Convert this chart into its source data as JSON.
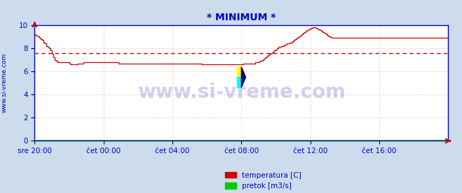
{
  "title": "* MINIMUM *",
  "title_color": "#0000cc",
  "bg_color": "#ccdcec",
  "plot_bg_color": "#ffffff",
  "grid_color": "#ffaaaa",
  "axis_color": "#0000cc",
  "line_color": "#cc0000",
  "avg_line_value": 7.55,
  "ylabel_text": "www.si-vreme.com",
  "ylabel_color": "#0000aa",
  "xlim": [
    0,
    288
  ],
  "ylim": [
    0,
    10
  ],
  "yticks": [
    0,
    2,
    4,
    6,
    8,
    10
  ],
  "xtick_labels": [
    "sre 20:00",
    "čet 00:00",
    "čet 04:00",
    "čet 08:00",
    "čet 12:00",
    "čet 16:00"
  ],
  "xtick_positions": [
    0,
    48,
    96,
    144,
    192,
    240
  ],
  "legend_labels": [
    "temperatura [C]",
    "pretok [m3/s]"
  ],
  "legend_colors": [
    "#cc0000",
    "#00cc00"
  ],
  "watermark_text": "www.si-vreme.com",
  "watermark_color": "#0000aa",
  "watermark_alpha": 0.18,
  "temperature_data": [
    9.2,
    9.1,
    9.0,
    8.9,
    8.8,
    8.7,
    8.5,
    8.4,
    8.2,
    8.1,
    8.0,
    7.8,
    7.5,
    7.2,
    7.0,
    6.9,
    6.8,
    6.8,
    6.8,
    6.8,
    6.8,
    6.8,
    6.8,
    6.8,
    6.7,
    6.6,
    6.6,
    6.6,
    6.6,
    6.6,
    6.7,
    6.7,
    6.7,
    6.7,
    6.8,
    6.8,
    6.8,
    6.8,
    6.8,
    6.8,
    6.8,
    6.8,
    6.8,
    6.8,
    6.8,
    6.8,
    6.8,
    6.8,
    6.8,
    6.8,
    6.8,
    6.8,
    6.8,
    6.8,
    6.8,
    6.8,
    6.8,
    6.8,
    6.7,
    6.7,
    6.7,
    6.7,
    6.7,
    6.7,
    6.7,
    6.7,
    6.7,
    6.7,
    6.7,
    6.7,
    6.7,
    6.7,
    6.7,
    6.7,
    6.7,
    6.7,
    6.7,
    6.7,
    6.7,
    6.7,
    6.7,
    6.7,
    6.7,
    6.7,
    6.7,
    6.7,
    6.7,
    6.7,
    6.7,
    6.7,
    6.7,
    6.7,
    6.7,
    6.7,
    6.7,
    6.7,
    6.7,
    6.7,
    6.7,
    6.7,
    6.7,
    6.7,
    6.7,
    6.7,
    6.7,
    6.7,
    6.7,
    6.7,
    6.7,
    6.7,
    6.7,
    6.7,
    6.7,
    6.7,
    6.7,
    6.7,
    6.6,
    6.6,
    6.6,
    6.6,
    6.6,
    6.6,
    6.6,
    6.6,
    6.6,
    6.6,
    6.6,
    6.6,
    6.6,
    6.6,
    6.6,
    6.6,
    6.6,
    6.6,
    6.6,
    6.6,
    6.6,
    6.6,
    6.6,
    6.6,
    6.6,
    6.6,
    6.6,
    6.6,
    6.6,
    6.7,
    6.7,
    6.7,
    6.7,
    6.7,
    6.7,
    6.7,
    6.7,
    6.8,
    6.8,
    6.8,
    6.9,
    6.9,
    7.0,
    7.1,
    7.2,
    7.3,
    7.4,
    7.5,
    7.6,
    7.7,
    7.8,
    7.9,
    8.0,
    8.1,
    8.1,
    8.2,
    8.2,
    8.3,
    8.3,
    8.4,
    8.4,
    8.5,
    8.5,
    8.6,
    8.7,
    8.8,
    8.9,
    9.0,
    9.1,
    9.2,
    9.3,
    9.4,
    9.5,
    9.6,
    9.65,
    9.7,
    9.75,
    9.8,
    9.8,
    9.75,
    9.7,
    9.65,
    9.6,
    9.5,
    9.4,
    9.3,
    9.2,
    9.1,
    9.0,
    8.95,
    8.9,
    8.9,
    8.9,
    8.9,
    8.9,
    8.9,
    8.9,
    8.9,
    8.9,
    8.9,
    8.9,
    8.9,
    8.9,
    8.9,
    8.9,
    8.9,
    8.9,
    8.9,
    8.9,
    8.9,
    8.9,
    8.9,
    8.9,
    8.9,
    8.9,
    8.9,
    8.9,
    8.9,
    8.9,
    8.9,
    8.9,
    8.9,
    8.9,
    8.9,
    8.9,
    8.9,
    8.9,
    8.9,
    8.9,
    8.9,
    8.9,
    8.9,
    8.9,
    8.9,
    8.9,
    8.9,
    8.9,
    8.9,
    8.9,
    8.9,
    8.9,
    8.9,
    8.9,
    8.9,
    8.9,
    8.9,
    8.9,
    8.9,
    8.9,
    8.9,
    8.9,
    8.9,
    8.9,
    8.9,
    8.9,
    8.9,
    8.9,
    8.9,
    8.9,
    8.9,
    8.9,
    8.9,
    8.9,
    8.9,
    8.9,
    8.9,
    8.9,
    8.9,
    8.9,
    8.9,
    8.9,
    8.9
  ]
}
